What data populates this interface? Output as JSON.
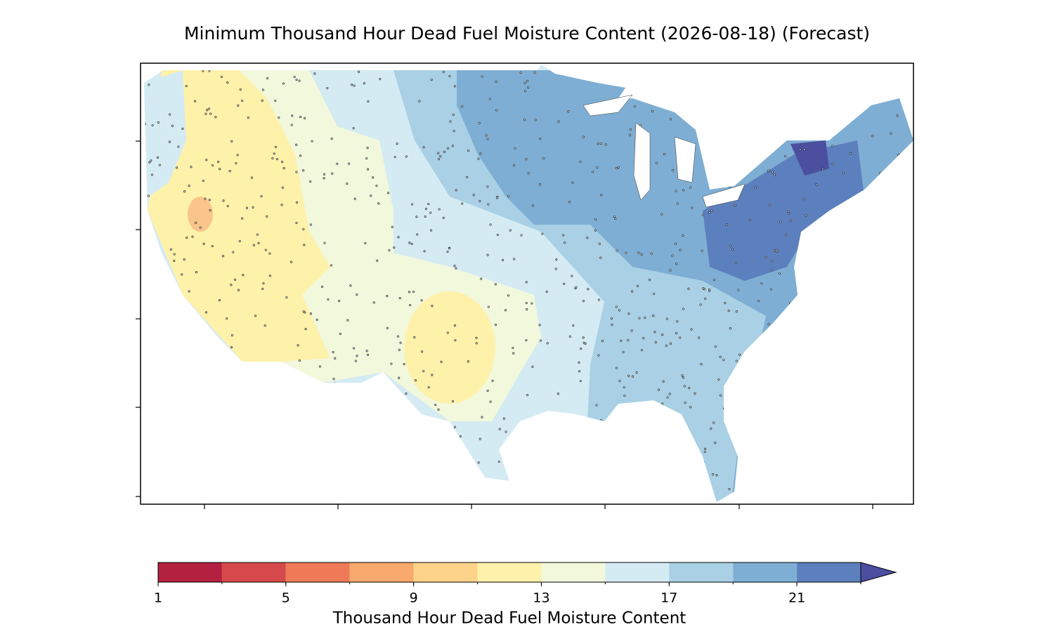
{
  "title": "Minimum Thousand Hour Dead Fuel Moisture Content (2026-08-18) (Forecast)",
  "colorbar": {
    "boundaries": [
      1,
      3,
      5,
      7,
      9,
      11,
      13,
      15,
      17,
      19,
      21,
      23
    ],
    "colors": [
      "#b2213f",
      "#d6494a",
      "#ee7a58",
      "#f9a96b",
      "#fdd38a",
      "#fef1aa",
      "#f1f8dc",
      "#d4ebf3",
      "#a9d0e5",
      "#7eaed3",
      "#5c7fbd"
    ],
    "extend_color": "#4c4ea0",
    "ticks": [
      1,
      5,
      9,
      13,
      17,
      21
    ],
    "label": "Thousand Hour Dead Fuel Moisture Content"
  }
}
